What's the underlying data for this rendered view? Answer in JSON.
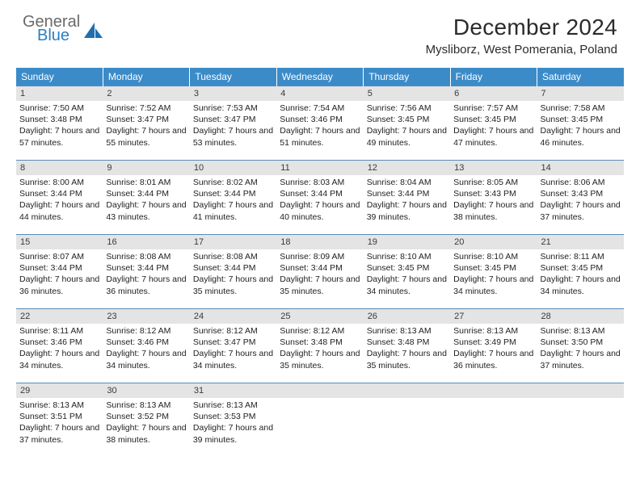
{
  "logo": {
    "word1": "General",
    "word2": "Blue"
  },
  "title": "December 2024",
  "location": "Mysliborz, West Pomerania, Poland",
  "colors": {
    "header_bg": "#3b8bc9",
    "header_text": "#ffffff",
    "daynum_bg": "#e4e4e4",
    "rule": "#5a8bb8",
    "logo_gray": "#6a6a6a",
    "logo_blue": "#2a7fc4"
  },
  "day_headers": [
    "Sunday",
    "Monday",
    "Tuesday",
    "Wednesday",
    "Thursday",
    "Friday",
    "Saturday"
  ],
  "weeks": [
    [
      {
        "n": "1",
        "sunrise": "Sunrise: 7:50 AM",
        "sunset": "Sunset: 3:48 PM",
        "daylight": "Daylight: 7 hours and 57 minutes."
      },
      {
        "n": "2",
        "sunrise": "Sunrise: 7:52 AM",
        "sunset": "Sunset: 3:47 PM",
        "daylight": "Daylight: 7 hours and 55 minutes."
      },
      {
        "n": "3",
        "sunrise": "Sunrise: 7:53 AM",
        "sunset": "Sunset: 3:47 PM",
        "daylight": "Daylight: 7 hours and 53 minutes."
      },
      {
        "n": "4",
        "sunrise": "Sunrise: 7:54 AM",
        "sunset": "Sunset: 3:46 PM",
        "daylight": "Daylight: 7 hours and 51 minutes."
      },
      {
        "n": "5",
        "sunrise": "Sunrise: 7:56 AM",
        "sunset": "Sunset: 3:45 PM",
        "daylight": "Daylight: 7 hours and 49 minutes."
      },
      {
        "n": "6",
        "sunrise": "Sunrise: 7:57 AM",
        "sunset": "Sunset: 3:45 PM",
        "daylight": "Daylight: 7 hours and 47 minutes."
      },
      {
        "n": "7",
        "sunrise": "Sunrise: 7:58 AM",
        "sunset": "Sunset: 3:45 PM",
        "daylight": "Daylight: 7 hours and 46 minutes."
      }
    ],
    [
      {
        "n": "8",
        "sunrise": "Sunrise: 8:00 AM",
        "sunset": "Sunset: 3:44 PM",
        "daylight": "Daylight: 7 hours and 44 minutes."
      },
      {
        "n": "9",
        "sunrise": "Sunrise: 8:01 AM",
        "sunset": "Sunset: 3:44 PM",
        "daylight": "Daylight: 7 hours and 43 minutes."
      },
      {
        "n": "10",
        "sunrise": "Sunrise: 8:02 AM",
        "sunset": "Sunset: 3:44 PM",
        "daylight": "Daylight: 7 hours and 41 minutes."
      },
      {
        "n": "11",
        "sunrise": "Sunrise: 8:03 AM",
        "sunset": "Sunset: 3:44 PM",
        "daylight": "Daylight: 7 hours and 40 minutes."
      },
      {
        "n": "12",
        "sunrise": "Sunrise: 8:04 AM",
        "sunset": "Sunset: 3:44 PM",
        "daylight": "Daylight: 7 hours and 39 minutes."
      },
      {
        "n": "13",
        "sunrise": "Sunrise: 8:05 AM",
        "sunset": "Sunset: 3:43 PM",
        "daylight": "Daylight: 7 hours and 38 minutes."
      },
      {
        "n": "14",
        "sunrise": "Sunrise: 8:06 AM",
        "sunset": "Sunset: 3:43 PM",
        "daylight": "Daylight: 7 hours and 37 minutes."
      }
    ],
    [
      {
        "n": "15",
        "sunrise": "Sunrise: 8:07 AM",
        "sunset": "Sunset: 3:44 PM",
        "daylight": "Daylight: 7 hours and 36 minutes."
      },
      {
        "n": "16",
        "sunrise": "Sunrise: 8:08 AM",
        "sunset": "Sunset: 3:44 PM",
        "daylight": "Daylight: 7 hours and 36 minutes."
      },
      {
        "n": "17",
        "sunrise": "Sunrise: 8:08 AM",
        "sunset": "Sunset: 3:44 PM",
        "daylight": "Daylight: 7 hours and 35 minutes."
      },
      {
        "n": "18",
        "sunrise": "Sunrise: 8:09 AM",
        "sunset": "Sunset: 3:44 PM",
        "daylight": "Daylight: 7 hours and 35 minutes."
      },
      {
        "n": "19",
        "sunrise": "Sunrise: 8:10 AM",
        "sunset": "Sunset: 3:45 PM",
        "daylight": "Daylight: 7 hours and 34 minutes."
      },
      {
        "n": "20",
        "sunrise": "Sunrise: 8:10 AM",
        "sunset": "Sunset: 3:45 PM",
        "daylight": "Daylight: 7 hours and 34 minutes."
      },
      {
        "n": "21",
        "sunrise": "Sunrise: 8:11 AM",
        "sunset": "Sunset: 3:45 PM",
        "daylight": "Daylight: 7 hours and 34 minutes."
      }
    ],
    [
      {
        "n": "22",
        "sunrise": "Sunrise: 8:11 AM",
        "sunset": "Sunset: 3:46 PM",
        "daylight": "Daylight: 7 hours and 34 minutes."
      },
      {
        "n": "23",
        "sunrise": "Sunrise: 8:12 AM",
        "sunset": "Sunset: 3:46 PM",
        "daylight": "Daylight: 7 hours and 34 minutes."
      },
      {
        "n": "24",
        "sunrise": "Sunrise: 8:12 AM",
        "sunset": "Sunset: 3:47 PM",
        "daylight": "Daylight: 7 hours and 34 minutes."
      },
      {
        "n": "25",
        "sunrise": "Sunrise: 8:12 AM",
        "sunset": "Sunset: 3:48 PM",
        "daylight": "Daylight: 7 hours and 35 minutes."
      },
      {
        "n": "26",
        "sunrise": "Sunrise: 8:13 AM",
        "sunset": "Sunset: 3:48 PM",
        "daylight": "Daylight: 7 hours and 35 minutes."
      },
      {
        "n": "27",
        "sunrise": "Sunrise: 8:13 AM",
        "sunset": "Sunset: 3:49 PM",
        "daylight": "Daylight: 7 hours and 36 minutes."
      },
      {
        "n": "28",
        "sunrise": "Sunrise: 8:13 AM",
        "sunset": "Sunset: 3:50 PM",
        "daylight": "Daylight: 7 hours and 37 minutes."
      }
    ],
    [
      {
        "n": "29",
        "sunrise": "Sunrise: 8:13 AM",
        "sunset": "Sunset: 3:51 PM",
        "daylight": "Daylight: 7 hours and 37 minutes."
      },
      {
        "n": "30",
        "sunrise": "Sunrise: 8:13 AM",
        "sunset": "Sunset: 3:52 PM",
        "daylight": "Daylight: 7 hours and 38 minutes."
      },
      {
        "n": "31",
        "sunrise": "Sunrise: 8:13 AM",
        "sunset": "Sunset: 3:53 PM",
        "daylight": "Daylight: 7 hours and 39 minutes."
      },
      {
        "empty": true
      },
      {
        "empty": true
      },
      {
        "empty": true
      },
      {
        "empty": true
      }
    ]
  ]
}
